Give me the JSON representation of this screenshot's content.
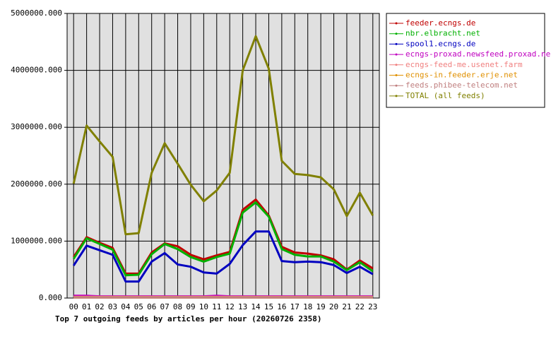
{
  "chart_data": {
    "type": "line",
    "title": "Top 7 outgoing feeds by articles per hour (20260726 2358)",
    "categories": [
      "00",
      "01",
      "02",
      "03",
      "04",
      "05",
      "06",
      "07",
      "08",
      "09",
      "10",
      "11",
      "12",
      "13",
      "14",
      "15",
      "16",
      "17",
      "18",
      "19",
      "20",
      "21",
      "22",
      "23"
    ],
    "ylim": [
      0,
      5000000
    ],
    "yticks": [
      {
        "value": 0,
        "label": "0.000"
      },
      {
        "value": 1000000,
        "label": "1000000.000"
      },
      {
        "value": 2000000,
        "label": "2000000.000"
      },
      {
        "value": 3000000,
        "label": "3000000.000"
      },
      {
        "value": 4000000,
        "label": "4000000.000"
      },
      {
        "value": 5000000,
        "label": "5000000.000"
      }
    ],
    "grid": true,
    "legend": "right",
    "series": [
      {
        "name": "feeder.ecngs.de",
        "color": "#c00000",
        "values": [
          720000,
          1070000,
          970000,
          880000,
          430000,
          430000,
          800000,
          960000,
          910000,
          760000,
          680000,
          750000,
          810000,
          1550000,
          1730000,
          1450000,
          900000,
          800000,
          780000,
          750000,
          680000,
          500000,
          660000,
          520000
        ]
      },
      {
        "name": "nbr.elbracht.net",
        "color": "#00b000",
        "values": [
          690000,
          1050000,
          950000,
          850000,
          400000,
          410000,
          770000,
          950000,
          860000,
          720000,
          640000,
          720000,
          780000,
          1500000,
          1680000,
          1430000,
          860000,
          760000,
          730000,
          730000,
          640000,
          490000,
          630000,
          470000
        ]
      },
      {
        "name": "spool1.ecngs.de",
        "color": "#0000c0",
        "values": [
          570000,
          920000,
          840000,
          760000,
          290000,
          290000,
          640000,
          790000,
          590000,
          550000,
          450000,
          430000,
          600000,
          930000,
          1170000,
          1170000,
          650000,
          630000,
          640000,
          630000,
          580000,
          440000,
          550000,
          420000
        ]
      },
      {
        "name": "ecngs-proxad.newsfeed.proxad.net",
        "color": "#c000c0",
        "values": [
          40000,
          40000,
          30000,
          30000,
          30000,
          30000,
          30000,
          30000,
          30000,
          30000,
          30000,
          40000,
          30000,
          30000,
          30000,
          30000,
          30000,
          30000,
          30000,
          30000,
          30000,
          30000,
          30000,
          30000
        ]
      },
      {
        "name": "ecngs-feed-me.usenet.farm",
        "color": "#f08080",
        "values": [
          20000,
          20000,
          20000,
          20000,
          20000,
          20000,
          20000,
          20000,
          20000,
          20000,
          20000,
          20000,
          20000,
          20000,
          20000,
          20000,
          20000,
          20000,
          20000,
          20000,
          20000,
          20000,
          20000,
          20000
        ]
      },
      {
        "name": "ecngs-in.feeder.erje.net",
        "color": "#e09000",
        "values": [
          10000,
          10000,
          10000,
          10000,
          10000,
          10000,
          10000,
          10000,
          10000,
          10000,
          10000,
          10000,
          10000,
          10000,
          10000,
          10000,
          10000,
          10000,
          10000,
          10000,
          10000,
          10000,
          10000,
          10000
        ]
      },
      {
        "name": "feeds.phibee-telecom.net",
        "color": "#c08080",
        "values": [
          10000,
          10000,
          10000,
          10000,
          10000,
          10000,
          10000,
          10000,
          10000,
          10000,
          10000,
          10000,
          10000,
          10000,
          10000,
          10000,
          10000,
          10000,
          10000,
          10000,
          10000,
          10000,
          10000,
          10000
        ]
      },
      {
        "name": "TOTAL (all feeds)",
        "color": "#808000",
        "values": [
          2010000,
          3030000,
          2750000,
          2480000,
          1120000,
          1140000,
          2200000,
          2720000,
          2360000,
          1990000,
          1700000,
          1890000,
          2200000,
          4000000,
          4600000,
          4030000,
          2410000,
          2180000,
          2160000,
          2120000,
          1910000,
          1440000,
          1850000,
          1450000
        ]
      }
    ]
  }
}
